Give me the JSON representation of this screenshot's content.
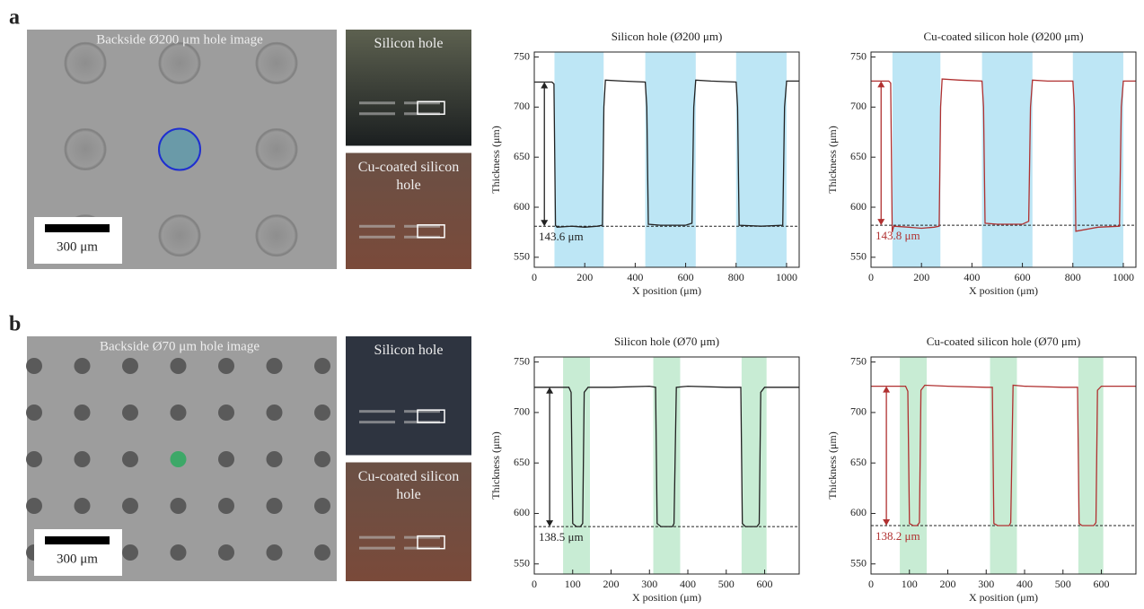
{
  "panels": [
    {
      "label": "a",
      "image_title": "Backside Ø200 μm hole image",
      "scale_bar": "300 μm",
      "insets": [
        "Silicon hole",
        "Cu-coated silicon hole"
      ]
    },
    {
      "label": "b",
      "image_title": "Backside Ø70 μm hole image",
      "scale_bar": "300 μm",
      "insets": [
        "Silicon hole",
        "Cu-coated silicon hole"
      ]
    }
  ],
  "chart_data": [
    {
      "type": "line",
      "title": "Silicon hole (Ø200 μm)",
      "xlabel": "X position (μm)",
      "ylabel": "Thickness (μm)",
      "xlim": [
        0,
        1050
      ],
      "ylim": [
        540,
        755
      ],
      "xticks": [
        0,
        200,
        400,
        600,
        800,
        1000
      ],
      "yticks": [
        550,
        600,
        650,
        700,
        750
      ],
      "color": "#222222",
      "highlight_color": "#bde6f5",
      "highlight_ranges": [
        [
          80,
          275
        ],
        [
          440,
          640
        ],
        [
          800,
          1000
        ]
      ],
      "reference_line": 581,
      "span_arrow": {
        "x": 40,
        "from": 581,
        "to": 725
      },
      "annotation": "143.6 μm",
      "x": [
        0,
        70,
        78,
        84,
        90,
        150,
        200,
        250,
        270,
        276,
        282,
        350,
        440,
        446,
        452,
        500,
        600,
        625,
        632,
        640,
        700,
        800,
        806,
        812,
        900,
        985,
        992,
        1000,
        1050
      ],
      "values": [
        725,
        725,
        723,
        582,
        580,
        581,
        580,
        581,
        582,
        700,
        727,
        726,
        725,
        700,
        583,
        582,
        582,
        584,
        700,
        727,
        726,
        725,
        700,
        582,
        581,
        582,
        700,
        726,
        726
      ]
    },
    {
      "type": "line",
      "title": "Cu-coated silicon hole (Ø200 μm)",
      "xlabel": "X position (μm)",
      "ylabel": "Thickness (μm)",
      "xlim": [
        0,
        1050
      ],
      "ylim": [
        540,
        755
      ],
      "xticks": [
        0,
        200,
        400,
        600,
        800,
        1000
      ],
      "yticks": [
        550,
        600,
        650,
        700,
        750
      ],
      "color": "#b03030",
      "highlight_color": "#bde6f5",
      "highlight_ranges": [
        [
          85,
          275
        ],
        [
          440,
          640
        ],
        [
          800,
          1000
        ]
      ],
      "reference_line": 582,
      "span_arrow": {
        "x": 40,
        "from": 582,
        "to": 726
      },
      "annotation": "143.8 μm",
      "x": [
        0,
        70,
        78,
        84,
        90,
        150,
        200,
        250,
        270,
        276,
        282,
        350,
        440,
        446,
        452,
        500,
        600,
        625,
        632,
        640,
        700,
        800,
        806,
        812,
        900,
        985,
        992,
        1000,
        1050
      ],
      "values": [
        726,
        726,
        724,
        575,
        581,
        580,
        579,
        580,
        581,
        700,
        728,
        727,
        726,
        700,
        584,
        583,
        583,
        586,
        700,
        727,
        726,
        726,
        700,
        576,
        580,
        581,
        700,
        726,
        726
      ]
    },
    {
      "type": "line",
      "title": "Silicon hole (Ø70 μm)",
      "xlabel": "X position (μm)",
      "ylabel": "Thickness (μm)",
      "xlim": [
        0,
        690
      ],
      "ylim": [
        540,
        755
      ],
      "xticks": [
        0,
        100,
        200,
        300,
        400,
        500,
        600
      ],
      "yticks": [
        550,
        600,
        650,
        700,
        750
      ],
      "color": "#222222",
      "highlight_color": "#c8ecd4",
      "highlight_ranges": [
        [
          75,
          145
        ],
        [
          310,
          380
        ],
        [
          540,
          605
        ]
      ],
      "reference_line": 587,
      "span_arrow": {
        "x": 40,
        "from": 587,
        "to": 725
      },
      "annotation": "138.5 μm",
      "x": [
        0,
        90,
        96,
        100,
        110,
        120,
        126,
        130,
        140,
        200,
        300,
        316,
        320,
        330,
        360,
        364,
        370,
        400,
        500,
        538,
        542,
        550,
        580,
        586,
        590,
        600,
        690
      ],
      "values": [
        725,
        725,
        720,
        590,
        587,
        587,
        590,
        720,
        725,
        725,
        726,
        725,
        590,
        587,
        587,
        590,
        725,
        726,
        725,
        725,
        590,
        587,
        587,
        590,
        720,
        725,
        725
      ]
    },
    {
      "type": "line",
      "title": "Cu-coated silicon hole (Ø70 μm)",
      "xlabel": "X position (μm)",
      "ylabel": "Thickness (μm)",
      "xlim": [
        0,
        690
      ],
      "ylim": [
        540,
        755
      ],
      "xticks": [
        0,
        100,
        200,
        300,
        400,
        500,
        600
      ],
      "yticks": [
        550,
        600,
        650,
        700,
        750
      ],
      "color": "#b03030",
      "highlight_color": "#c8ecd4",
      "highlight_ranges": [
        [
          75,
          145
        ],
        [
          310,
          380
        ],
        [
          540,
          605
        ]
      ],
      "reference_line": 588,
      "span_arrow": {
        "x": 40,
        "from": 588,
        "to": 726
      },
      "annotation": "138.2 μm",
      "x": [
        0,
        90,
        96,
        100,
        110,
        120,
        126,
        130,
        140,
        200,
        300,
        316,
        320,
        330,
        360,
        364,
        370,
        400,
        500,
        538,
        542,
        550,
        580,
        586,
        590,
        600,
        690
      ],
      "values": [
        726,
        726,
        721,
        590,
        588,
        588,
        591,
        722,
        727,
        726,
        725,
        725,
        590,
        588,
        588,
        591,
        727,
        726,
        725,
        725,
        590,
        588,
        588,
        591,
        722,
        726,
        726
      ]
    }
  ]
}
